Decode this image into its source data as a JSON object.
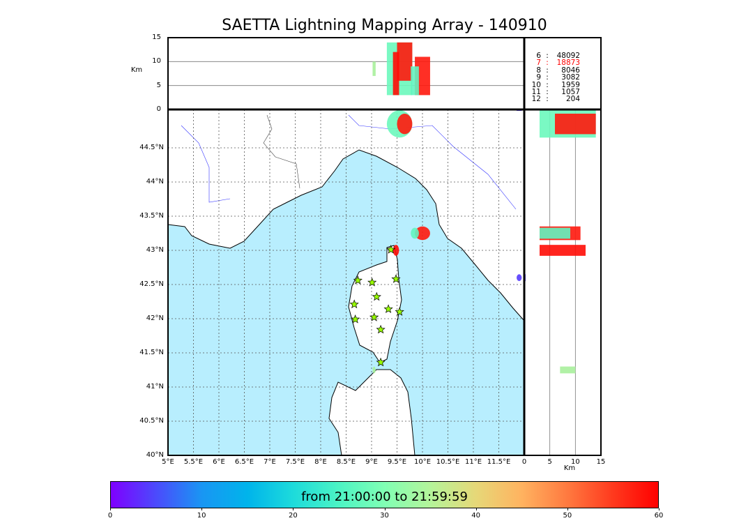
{
  "title": "SAETTA Lightning Mapping Array - 140910",
  "legend": [
    {
      "minute": "6",
      "count": "48092",
      "color": "#000000"
    },
    {
      "minute": "7",
      "count": "18873",
      "color": "#ff0000"
    },
    {
      "minute": "8",
      "count": "8046",
      "color": "#000000"
    },
    {
      "minute": "9",
      "count": "3082",
      "color": "#000000"
    },
    {
      "minute": "10",
      "count": "1959",
      "color": "#000000"
    },
    {
      "minute": "11",
      "count": "1057",
      "color": "#000000"
    },
    {
      "minute": "12",
      "count": "204",
      "color": "#000000"
    }
  ],
  "colorbar": {
    "label": "from 21:00:00 to 21:59:59",
    "ticks": [
      "0",
      "10",
      "20",
      "30",
      "40",
      "50",
      "60"
    ]
  },
  "chart_data": {
    "type": "scatter",
    "map": {
      "lon_range": [
        5,
        12
      ],
      "lat_range": [
        40,
        45.05
      ],
      "lon_ticks": [
        "5°E",
        "5.5°E",
        "6°E",
        "6.5°E",
        "7°E",
        "7.5°E",
        "8°E",
        "8.5°E",
        "9°E",
        "9.5°E",
        "10°E",
        "10.5°E",
        "11°E",
        "11.5°E"
      ],
      "lat_ticks": [
        "40°N",
        "40.5°N",
        "41°N",
        "41.5°N",
        "42°N",
        "42.5°N",
        "43°N",
        "43.5°N",
        "44°N",
        "44.5°N"
      ]
    },
    "alt_panel": {
      "ylabel": "Km",
      "ticks": [
        "0",
        "5",
        "10",
        "15"
      ],
      "range": [
        0,
        15
      ]
    },
    "side_panel": {
      "xlabel": "Km",
      "ticks": [
        "0",
        "5",
        "10",
        "15"
      ],
      "range": [
        0,
        15
      ]
    },
    "stations": [
      [
        9.38,
        43.01
      ],
      [
        8.73,
        42.56
      ],
      [
        9.01,
        42.53
      ],
      [
        9.48,
        42.58
      ],
      [
        9.1,
        42.32
      ],
      [
        9.33,
        42.14
      ],
      [
        8.66,
        42.21
      ],
      [
        9.55,
        42.1
      ],
      [
        9.05,
        42.02
      ],
      [
        8.68,
        41.99
      ],
      [
        9.18,
        41.84
      ],
      [
        9.18,
        41.36
      ]
    ],
    "clusters": [
      {
        "lon": 9.55,
        "lat": 44.85,
        "alt_min": 3,
        "alt_max": 14,
        "minute": 28,
        "dlon": 0.25,
        "dlat": 0.2
      },
      {
        "lon": 9.65,
        "lat": 44.85,
        "alt_min": 6,
        "alt_max": 14,
        "minute": 58,
        "dlon": 0.15,
        "dlat": 0.15
      },
      {
        "lon": 10.0,
        "lat": 43.25,
        "alt_min": 3,
        "alt_max": 11,
        "minute": 58,
        "dlon": 0.15,
        "dlat": 0.1
      },
      {
        "lon": 9.85,
        "lat": 43.25,
        "alt_min": 3,
        "alt_max": 9,
        "minute": 27,
        "dlon": 0.08,
        "dlat": 0.08
      },
      {
        "lon": 9.48,
        "lat": 43.0,
        "alt_min": 3,
        "alt_max": 12,
        "minute": 59,
        "dlon": 0.06,
        "dlat": 0.08
      },
      {
        "lon": 11.9,
        "lat": 42.6,
        "alt_min": 0,
        "alt_max": 0,
        "minute": 8,
        "dlon": 0.05,
        "dlat": 0.05
      },
      {
        "lon": 9.05,
        "lat": 41.25,
        "alt_min": 7,
        "alt_max": 10,
        "minute": 34,
        "dlon": 0.03,
        "dlat": 0.05
      }
    ]
  }
}
